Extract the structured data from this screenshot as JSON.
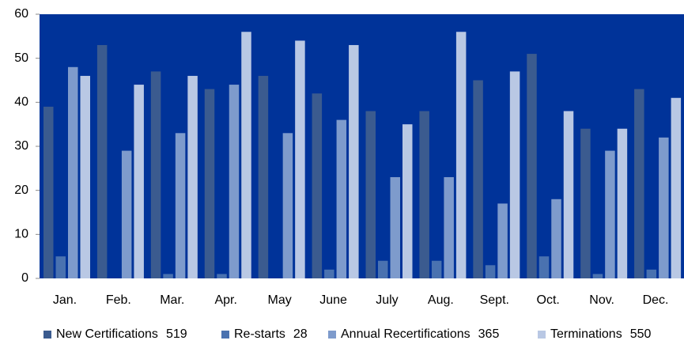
{
  "chart_data": {
    "type": "bar",
    "categories": [
      "Jan.",
      "Feb.",
      "Mar.",
      "Apr.",
      "May",
      "June",
      "July",
      "Aug.",
      "Sept.",
      "Oct.",
      "Nov.",
      "Dec."
    ],
    "series": [
      {
        "name": "New Certifications",
        "total": 519,
        "color": "#3b5b8f",
        "values": [
          39,
          53,
          47,
          43,
          46,
          42,
          38,
          38,
          45,
          51,
          34,
          43
        ]
      },
      {
        "name": "Re-starts",
        "total": 28,
        "color": "#4a72b0",
        "values": [
          5,
          0,
          1,
          1,
          0,
          2,
          4,
          4,
          3,
          5,
          1,
          2
        ]
      },
      {
        "name": "Annual Recertifications",
        "total": 365,
        "color": "#7e9bcc",
        "values": [
          48,
          29,
          33,
          44,
          33,
          36,
          23,
          23,
          17,
          18,
          29,
          32
        ]
      },
      {
        "name": "Terminations",
        "total": 550,
        "color": "#b9c8e4",
        "values": [
          46,
          44,
          46,
          56,
          54,
          53,
          35,
          56,
          47,
          38,
          34,
          41
        ]
      }
    ],
    "ylim": [
      0,
      60
    ],
    "yticks": [
      0,
      10,
      20,
      30,
      40,
      50,
      60
    ],
    "grid": false,
    "plot_background": "#003399",
    "legend": "bottom"
  }
}
